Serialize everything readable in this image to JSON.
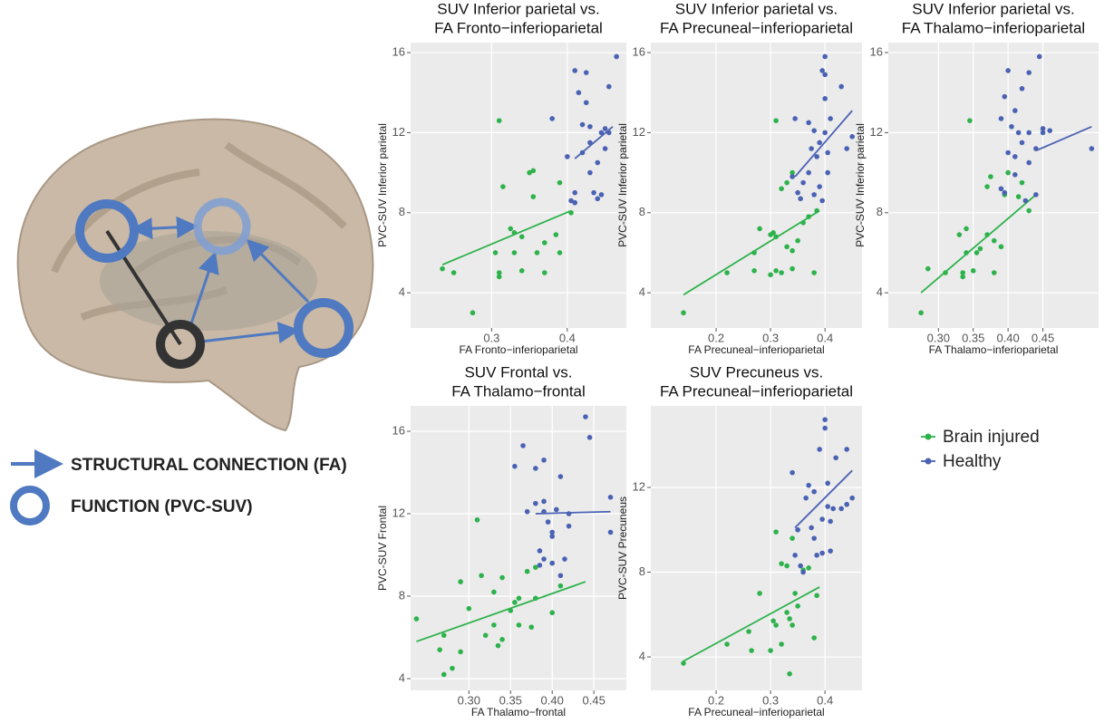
{
  "diagram": {
    "legend": [
      "STRUCTURAL CONNECTION (FA)",
      "FUNCTION (PVC-SUV)"
    ]
  },
  "chart_data": [
    {
      "type": "scatter",
      "title": [
        "SUV Inferior parietal vs.",
        "FA Fronto−inferioparietal"
      ],
      "xlabel": "FA Fronto−inferioparietal",
      "ylabel": "PVC-SUV Inferior parietal",
      "xlim": [
        0.193,
        0.478
      ],
      "ylim": [
        2.24,
        16.5
      ],
      "xticks": [
        0.3,
        0.4
      ],
      "yticks": [
        4,
        8,
        12,
        16
      ],
      "grid": true,
      "series": [
        {
          "name": "Brain injured",
          "color": "#2eb24b",
          "x": [
            0.235,
            0.25,
            0.275,
            0.31,
            0.315,
            0.31,
            0.31,
            0.305,
            0.325,
            0.33,
            0.34,
            0.35,
            0.355,
            0.355,
            0.34,
            0.36,
            0.37,
            0.37,
            0.385,
            0.39,
            0.39,
            0.405,
            0.33
          ],
          "values": [
            5.2,
            5.0,
            3.0,
            12.6,
            9.3,
            5.0,
            4.8,
            6.0,
            7.2,
            6.0,
            6.8,
            10,
            10.1,
            8.8,
            5.1,
            6.0,
            6.5,
            5.0,
            6.9,
            6.0,
            9.5,
            8.0,
            7.0
          ],
          "fit": {
            "x": [
              0.235,
              0.405
            ],
            "values": [
              5.4,
              8.1
            ]
          }
        },
        {
          "name": "Healthy",
          "color": "#4a62b3",
          "x": [
            0.38,
            0.4,
            0.405,
            0.41,
            0.41,
            0.415,
            0.42,
            0.42,
            0.425,
            0.425,
            0.43,
            0.43,
            0.43,
            0.435,
            0.44,
            0.44,
            0.445,
            0.45,
            0.45,
            0.455,
            0.455,
            0.465,
            0.41,
            0.445
          ],
          "values": [
            12.7,
            10.8,
            8.6,
            15.1,
            9.0,
            14,
            12.4,
            11,
            15,
            13.5,
            12.3,
            11.5,
            10,
            9,
            8.7,
            10.5,
            12,
            11.2,
            12.2,
            14.3,
            12,
            15.8,
            8.5,
            8.9
          ],
          "fit": {
            "x": [
              0.41,
              0.46
            ],
            "values": [
              10.7,
              12.3
            ]
          }
        }
      ]
    },
    {
      "type": "scatter",
      "title": [
        "SUV Inferior parietal vs.",
        "FA Precuneal−inferioparietal"
      ],
      "xlabel": "FA Precuneal−inferioparietal",
      "ylabel": "PVC-SUV Inferior parietal",
      "xlim": [
        0.08,
        0.468
      ],
      "ylim": [
        2.24,
        16.5
      ],
      "xticks": [
        0.2,
        0.3,
        0.4
      ],
      "yticks": [
        4,
        8,
        12,
        16
      ],
      "grid": true,
      "series": [
        {
          "color": "#2eb24b",
          "x": [
            0.14,
            0.22,
            0.27,
            0.27,
            0.28,
            0.3,
            0.3,
            0.31,
            0.31,
            0.31,
            0.32,
            0.32,
            0.33,
            0.33,
            0.34,
            0.34,
            0.35,
            0.36,
            0.37,
            0.38,
            0.385,
            0.305,
            0.34
          ],
          "values": [
            3.0,
            5.0,
            5.1,
            6.0,
            7.2,
            6.9,
            4.9,
            5.1,
            6.8,
            12.6,
            9.2,
            5.0,
            6.3,
            9.5,
            6.1,
            5.2,
            6.6,
            7.5,
            7.8,
            5.0,
            8.1,
            7.0,
            10
          ],
          "fit": {
            "x": [
              0.14,
              0.39
            ],
            "values": [
              3.9,
              8.1
            ]
          }
        },
        {
          "color": "#4a62b3",
          "x": [
            0.34,
            0.345,
            0.35,
            0.355,
            0.36,
            0.37,
            0.37,
            0.375,
            0.38,
            0.38,
            0.385,
            0.39,
            0.39,
            0.395,
            0.4,
            0.4,
            0.4,
            0.4,
            0.405,
            0.405,
            0.41,
            0.43,
            0.44,
            0.45,
            0.395
          ],
          "values": [
            9.8,
            12.7,
            9.0,
            8.7,
            9.5,
            12.5,
            10,
            11.2,
            8.9,
            12.1,
            10.8,
            9.3,
            11.5,
            15.1,
            14.9,
            15.8,
            12.0,
            13.7,
            11.0,
            10.0,
            12.7,
            14.3,
            11.2,
            11.8,
            8.6
          ],
          "fit": {
            "x": [
              0.345,
              0.45
            ],
            "values": [
              9.8,
              13.1
            ]
          }
        }
      ]
    },
    {
      "type": "scatter",
      "title": [
        "SUV Inferior parietal vs.",
        "FA Thalamo−inferioparietal"
      ],
      "xlabel": "FA Thalamo−inferioparietal",
      "ylabel": "PVC-SUV Inferior parietal",
      "xlim": [
        0.228,
        0.53
      ],
      "ylim": [
        2.24,
        16.5
      ],
      "xticks": [
        {
          "value": 0.3,
          "label": "0.30"
        },
        0.35,
        {
          "value": 0.4,
          "label": "0.40"
        },
        0.45
      ],
      "yticks": [
        4,
        8,
        12,
        16
      ],
      "grid": true,
      "series": [
        {
          "color": "#2eb24b",
          "x": [
            0.275,
            0.285,
            0.31,
            0.33,
            0.335,
            0.335,
            0.34,
            0.34,
            0.345,
            0.35,
            0.355,
            0.36,
            0.37,
            0.37,
            0.375,
            0.38,
            0.38,
            0.39,
            0.395,
            0.4,
            0.42,
            0.43,
            0.415
          ],
          "values": [
            3.0,
            5.2,
            5.0,
            6.9,
            5.0,
            4.8,
            6.0,
            7.2,
            12.6,
            5.1,
            6.0,
            6.2,
            6.9,
            9.3,
            9.8,
            6.6,
            5.0,
            6.3,
            8.9,
            10.0,
            9.5,
            8.1,
            8.8
          ],
          "fit": {
            "x": [
              0.275,
              0.44
            ],
            "values": [
              4.0,
              8.9
            ]
          }
        },
        {
          "color": "#4a62b3",
          "x": [
            0.39,
            0.395,
            0.395,
            0.4,
            0.4,
            0.405,
            0.41,
            0.41,
            0.41,
            0.415,
            0.42,
            0.42,
            0.43,
            0.43,
            0.43,
            0.44,
            0.44,
            0.445,
            0.45,
            0.45,
            0.46,
            0.52,
            0.39,
            0.425
          ],
          "values": [
            12.7,
            13.8,
            9.0,
            15.1,
            11.0,
            12.3,
            13.1,
            10.8,
            9.9,
            12.0,
            14.2,
            11.5,
            15.0,
            10.5,
            12.0,
            8.9,
            11.2,
            15.8,
            12.2,
            12.0,
            12.1,
            11.2,
            9.2,
            8.6
          ],
          "fit": {
            "x": [
              0.44,
              0.52
            ],
            "values": [
              11.1,
              12.3
            ]
          }
        }
      ]
    },
    {
      "type": "scatter",
      "title": [
        "SUV Frontal vs.",
        "FA Thalamo−frontal"
      ],
      "xlabel": "FA Thalamo−frontal",
      "ylabel": "PVC-SUV Frontal",
      "xlim": [
        0.23,
        0.489
      ],
      "ylim": [
        3.43,
        17.23
      ],
      "xticks": [
        {
          "value": 0.3,
          "label": "0.30"
        },
        0.35,
        {
          "value": 0.4,
          "label": "0.40"
        },
        0.45
      ],
      "yticks": [
        4,
        8,
        12,
        16
      ],
      "grid": true,
      "series": [
        {
          "color": "#2eb24b",
          "x": [
            0.237,
            0.265,
            0.27,
            0.28,
            0.27,
            0.29,
            0.29,
            0.3,
            0.31,
            0.315,
            0.32,
            0.33,
            0.33,
            0.335,
            0.34,
            0.34,
            0.35,
            0.355,
            0.36,
            0.36,
            0.37,
            0.38,
            0.38,
            0.375,
            0.41,
            0.4
          ],
          "values": [
            6.9,
            5.4,
            4.2,
            4.5,
            6.1,
            8.7,
            5.3,
            7.4,
            11.7,
            9.0,
            6.1,
            8.2,
            6.6,
            5.6,
            5.9,
            8.9,
            7.3,
            7.7,
            6.6,
            7.9,
            9.2,
            7.9,
            9.4,
            6.5,
            8.5,
            7.2
          ],
          "fit": {
            "x": [
              0.237,
              0.44
            ],
            "values": [
              5.8,
              8.7
            ]
          }
        },
        {
          "color": "#4a62b3",
          "x": [
            0.355,
            0.365,
            0.37,
            0.38,
            0.38,
            0.385,
            0.385,
            0.39,
            0.39,
            0.39,
            0.39,
            0.395,
            0.4,
            0.4,
            0.405,
            0.41,
            0.41,
            0.415,
            0.42,
            0.42,
            0.44,
            0.445,
            0.47,
            0.47,
            0.4
          ],
          "values": [
            14.3,
            15.3,
            12.1,
            12.5,
            14.2,
            9.5,
            10.2,
            12.1,
            9.8,
            14.6,
            12.6,
            11.6,
            10.9,
            9.6,
            12.2,
            9.0,
            13.8,
            9.8,
            11.4,
            12.0,
            16.7,
            15.7,
            12.8,
            11.1,
            11.1
          ],
          "fit": {
            "x": [
              0.38,
              0.47
            ],
            "values": [
              12.0,
              12.1
            ]
          }
        }
      ]
    },
    {
      "type": "scatter",
      "title": [
        "SUV Precuneus vs.",
        "FA Precuneal−inferioparietal"
      ],
      "xlabel": "FA Precuneal−inferioparietal",
      "ylabel": "PVC-SUV Precuneus",
      "xlim": [
        0.08,
        0.468
      ],
      "ylim": [
        2.42,
        15.85
      ],
      "xticks": [
        0.2,
        0.3,
        0.4
      ],
      "yticks": [
        4,
        8,
        12
      ],
      "grid": true,
      "series": [
        {
          "color": "#2eb24b",
          "x": [
            0.14,
            0.22,
            0.26,
            0.265,
            0.28,
            0.3,
            0.305,
            0.31,
            0.31,
            0.32,
            0.32,
            0.33,
            0.33,
            0.335,
            0.335,
            0.34,
            0.34,
            0.345,
            0.35,
            0.36,
            0.37,
            0.38,
            0.385
          ],
          "values": [
            3.7,
            4.6,
            5.2,
            4.3,
            7.0,
            4.3,
            5.7,
            5.5,
            9.9,
            8.4,
            4.6,
            6.1,
            8.3,
            5.8,
            3.2,
            5.5,
            9.6,
            7.0,
            6.4,
            8.1,
            8.2,
            4.9,
            6.9
          ],
          "fit": {
            "x": [
              0.14,
              0.39
            ],
            "values": [
              3.8,
              7.3
            ]
          }
        },
        {
          "color": "#4a62b3",
          "x": [
            0.34,
            0.345,
            0.35,
            0.355,
            0.36,
            0.365,
            0.37,
            0.375,
            0.38,
            0.38,
            0.385,
            0.39,
            0.395,
            0.395,
            0.4,
            0.4,
            0.405,
            0.405,
            0.41,
            0.41,
            0.415,
            0.42,
            0.43,
            0.44,
            0.44,
            0.45
          ],
          "values": [
            12.7,
            8.8,
            10.0,
            8.3,
            8.0,
            11.5,
            12.1,
            10.1,
            11.8,
            9.6,
            8.8,
            13.8,
            10.5,
            8.9,
            14.8,
            15.2,
            12.2,
            11.1,
            10.4,
            9.0,
            11.0,
            13.4,
            11.0,
            13.8,
            11.2,
            11.5
          ],
          "fit": {
            "x": [
              0.345,
              0.45
            ],
            "values": [
              10.1,
              12.8
            ]
          }
        }
      ]
    }
  ]
}
